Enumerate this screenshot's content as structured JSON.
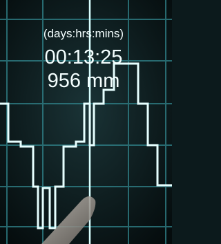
{
  "overlay": {
    "label": "(days:hrs:mins)",
    "elapsed": "00:13:25",
    "reading": "956 mm"
  }
}
